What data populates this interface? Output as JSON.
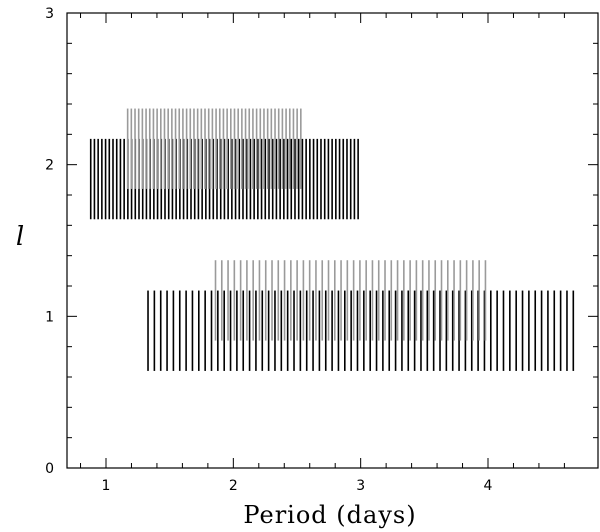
{
  "chart_data": {
    "type": "scatter",
    "mark_style": "vertical line segments (period spacings of modes)",
    "xlabel": "Period (days)",
    "ylabel": "l",
    "xlim": [
      0.55,
      4.75
    ],
    "ylim": [
      0,
      3
    ],
    "xticks": [
      1,
      2,
      3,
      4
    ],
    "yticks": [
      0,
      1,
      2,
      3
    ],
    "grid": false,
    "legend": "none",
    "colors": {
      "series_black": "#000000",
      "series_gray": "#9a9a9a",
      "frame": "#000000"
    },
    "series": [
      {
        "color": "#000000",
        "l": 2,
        "y_range": [
          1.64,
          2.17
        ],
        "x_start": 0.88,
        "x_end": 2.98,
        "count": 73
      },
      {
        "color": "#9a9a9a",
        "l": 2,
        "y_range": [
          1.84,
          2.37
        ],
        "x_start": 1.17,
        "x_end": 2.53,
        "count": 48
      },
      {
        "color": "#000000",
        "l": 1,
        "y_range": [
          0.64,
          1.17
        ],
        "x_start": 1.33,
        "x_end": 4.67,
        "count": 68
      },
      {
        "color": "#9a9a9a",
        "l": 1,
        "y_range": [
          0.84,
          1.37
        ],
        "x_start": 1.86,
        "x_end": 3.98,
        "count": 44
      }
    ]
  }
}
